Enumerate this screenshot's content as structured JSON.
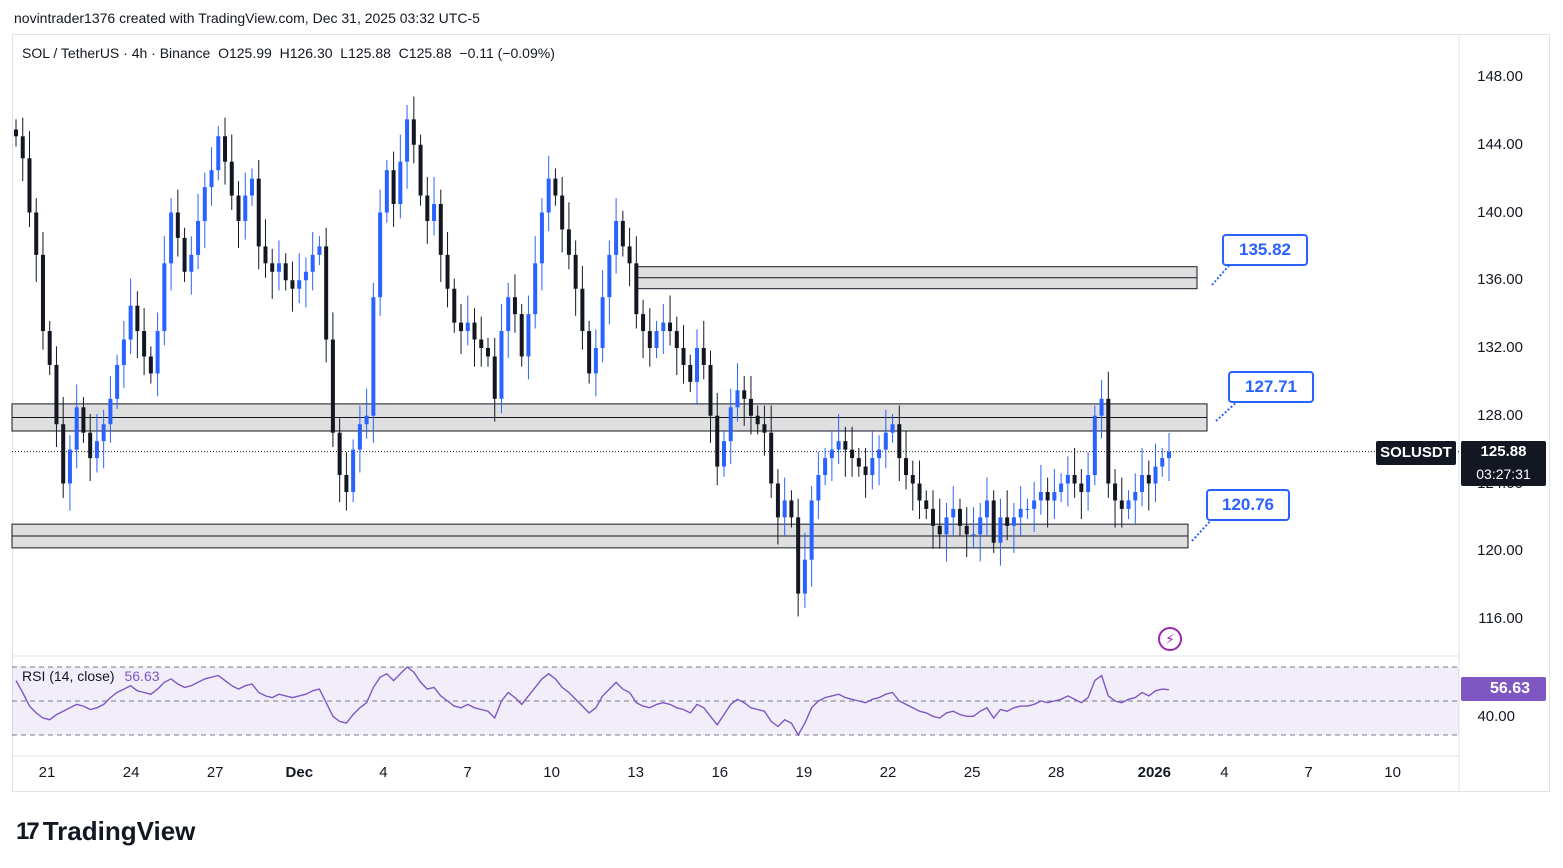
{
  "header": {
    "credit": "novintrader1376 created with TradingView.com, Dec 31, 2025 03:32 UTC-5"
  },
  "legend": {
    "symbol_line": "SOL / TetherUS · 4h · Binance  O125.99  H126.30  L125.88  C125.88  −0.11 (−0.09%)"
  },
  "rsi": {
    "label": "RSI (14, close)",
    "value": "56.63",
    "level_label": "40.00",
    "color": "#7e57c2"
  },
  "price_tag": {
    "symbol": "SOLUSDT",
    "price": "125.88",
    "countdown": "03:27:31"
  },
  "callouts": {
    "top": "135.82",
    "mid": "127.71",
    "low": "120.76"
  },
  "footer": {
    "brand": "TradingView",
    "mark": "17"
  },
  "colors": {
    "up": "#2962ff",
    "down": "#131722",
    "zone_fill": "#d9d9d9",
    "accent": "#2962ff"
  },
  "chart_data": {
    "type": "candlestick",
    "symbol": "SOL / TetherUS",
    "timeframe": "4h",
    "exchange": "Binance",
    "ohlc_last": {
      "open": 125.99,
      "high": 126.3,
      "low": 125.88,
      "close": 125.88,
      "change": -0.11,
      "change_pct": -0.09
    },
    "y_ticks": [
      "148.00",
      "144.00",
      "140.00",
      "136.00",
      "132.00",
      "128.00",
      "124.00",
      "120.00",
      "116.00"
    ],
    "x_ticks": [
      "21",
      "24",
      "27",
      "Dec",
      "4",
      "7",
      "10",
      "13",
      "16",
      "19",
      "22",
      "25",
      "28",
      "2026",
      "4",
      "7",
      "10"
    ],
    "ylim": [
      113.5,
      149.5
    ],
    "zones": [
      {
        "label": "135.82",
        "low": 135.5,
        "high": 136.8
      },
      {
        "label": "127.71",
        "low": 127.1,
        "high": 128.7
      },
      {
        "label": "120.76",
        "low": 120.2,
        "high": 121.6
      }
    ],
    "closes": [
      144.5,
      143.2,
      140.0,
      137.5,
      133.0,
      131.0,
      127.5,
      124.0,
      126.0,
      128.5,
      127.0,
      125.5,
      126.5,
      127.5,
      129.0,
      131.0,
      132.5,
      134.5,
      133.0,
      131.5,
      130.5,
      133.0,
      137.0,
      140.0,
      138.5,
      136.5,
      137.5,
      139.5,
      141.5,
      142.5,
      144.5,
      143.0,
      141.0,
      139.5,
      141.0,
      142.0,
      138.0,
      137.0,
      136.5,
      137.0,
      136.0,
      135.5,
      136.0,
      136.5,
      137.5,
      138.0,
      132.5,
      127.0,
      124.5,
      123.5,
      126.0,
      127.5,
      128.0,
      135.0,
      140.0,
      142.5,
      140.5,
      143.0,
      145.5,
      144.0,
      141.0,
      139.5,
      140.5,
      137.5,
      135.5,
      133.5,
      133.0,
      133.5,
      132.5,
      132.0,
      131.5,
      129.0,
      133.0,
      135.0,
      134.0,
      131.5,
      134.0,
      137.0,
      140.0,
      142.0,
      141.0,
      139.0,
      137.5,
      135.5,
      133.0,
      130.5,
      132.0,
      135.0,
      137.5,
      139.5,
      138.0,
      137.0,
      134.0,
      133.0,
      132.0,
      133.0,
      133.5,
      133.0,
      132.0,
      131.0,
      130.0,
      132.0,
      131.0,
      128.0,
      125.0,
      126.5,
      128.5,
      129.5,
      129.0,
      128.0,
      127.5,
      127.0,
      124.0,
      122.0,
      123.0,
      122.0,
      117.5,
      119.5,
      123.0,
      124.5,
      125.5,
      126.0,
      126.5,
      126.0,
      125.5,
      125.0,
      124.5,
      125.5,
      126.0,
      127.0,
      127.5,
      125.5,
      124.5,
      124.0,
      123.0,
      122.5,
      121.5,
      121.0,
      122.0,
      122.5,
      121.5,
      121.0,
      121.0,
      122.0,
      123.0,
      120.5,
      122.0,
      121.5,
      122.0,
      122.5,
      122.5,
      123.0,
      123.5,
      123.0,
      123.5,
      124.0,
      124.5,
      124.0,
      123.5,
      124.5,
      128.0,
      129.0,
      124.0,
      123.0,
      122.5,
      123.0,
      123.5,
      124.5,
      124.0,
      125.0,
      125.5,
      125.88
    ],
    "rsi_series": [
      {
        "name": "RSI",
        "values": [
          62,
          55,
          47,
          43,
          40,
          39,
          42,
          44,
          46,
          48,
          47,
          45,
          46,
          48,
          52,
          55,
          57,
          59,
          56,
          55,
          54,
          57,
          61,
          63,
          60,
          58,
          59,
          61,
          63,
          64,
          65,
          62,
          59,
          57,
          59,
          60,
          55,
          53,
          52,
          54,
          53,
          52,
          53,
          54,
          56,
          57,
          49,
          41,
          38,
          37,
          42,
          46,
          49,
          58,
          64,
          66,
          62,
          66,
          70,
          67,
          61,
          57,
          58,
          53,
          50,
          47,
          46,
          48,
          46,
          45,
          44,
          40,
          50,
          55,
          52,
          48,
          53,
          58,
          63,
          66,
          63,
          58,
          55,
          51,
          47,
          43,
          46,
          53,
          57,
          61,
          57,
          55,
          49,
          47,
          46,
          48,
          49,
          48,
          46,
          45,
          43,
          48,
          46,
          41,
          36,
          42,
          48,
          51,
          49,
          46,
          45,
          44,
          38,
          35,
          39,
          37,
          30,
          37,
          46,
          50,
          52,
          53,
          54,
          52,
          51,
          50,
          49,
          51,
          52,
          54,
          55,
          50,
          48,
          46,
          44,
          43,
          41,
          40,
          43,
          44,
          42,
          41,
          41,
          44,
          46,
          40,
          45,
          44,
          46,
          47,
          47,
          48,
          50,
          49,
          50,
          51,
          53,
          51,
          49,
          52,
          62,
          65,
          53,
          50,
          49,
          51,
          52,
          55,
          53,
          56,
          57,
          56.63
        ]
      }
    ],
    "rsi_range": [
      0,
      100
    ],
    "rsi_levels": [
      70,
      50,
      30
    ]
  }
}
